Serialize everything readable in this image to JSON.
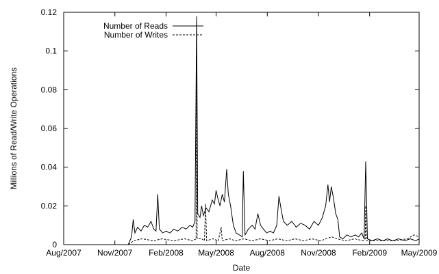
{
  "chart_data": {
    "type": "line",
    "title": "",
    "xlabel": "Date",
    "ylabel": "Millions of Read/Write Operations",
    "x_ticks": [
      "Aug/2007",
      "Nov/2007",
      "Feb/2008",
      "May/2008",
      "Aug/2008",
      "Nov/2008",
      "Feb/2009",
      "May/2009"
    ],
    "y_ticks": [
      "0",
      "0.02",
      "0.04",
      "0.06",
      "0.08",
      "0.1",
      "0.12"
    ],
    "xlim": [
      "2007-08-01",
      "2009-05-01"
    ],
    "ylim": [
      0,
      0.12
    ],
    "legend_position": "top-left",
    "series": [
      {
        "name": "Number of Reads",
        "style": "solid",
        "color": "#000000",
        "points": [
          [
            "2007-11-25",
            0.0
          ],
          [
            "2007-12-01",
            0.004
          ],
          [
            "2007-12-04",
            0.013
          ],
          [
            "2007-12-07",
            0.006
          ],
          [
            "2007-12-12",
            0.009
          ],
          [
            "2007-12-18",
            0.007
          ],
          [
            "2007-12-24",
            0.01
          ],
          [
            "2007-12-30",
            0.009
          ],
          [
            "2008-01-05",
            0.012
          ],
          [
            "2008-01-10",
            0.008
          ],
          [
            "2008-01-14",
            0.007
          ],
          [
            "2008-01-17",
            0.026
          ],
          [
            "2008-01-20",
            0.008
          ],
          [
            "2008-01-26",
            0.006
          ],
          [
            "2008-02-01",
            0.007
          ],
          [
            "2008-02-08",
            0.006
          ],
          [
            "2008-02-15",
            0.008
          ],
          [
            "2008-02-22",
            0.007
          ],
          [
            "2008-03-01",
            0.009
          ],
          [
            "2008-03-08",
            0.008
          ],
          [
            "2008-03-15",
            0.01
          ],
          [
            "2008-03-20",
            0.009
          ],
          [
            "2008-03-24",
            0.012
          ],
          [
            "2008-03-27",
            0.118
          ],
          [
            "2008-03-29",
            0.016
          ],
          [
            "2008-04-02",
            0.014
          ],
          [
            "2008-04-05",
            0.02
          ],
          [
            "2008-04-08",
            0.015
          ],
          [
            "2008-04-13",
            0.019
          ],
          [
            "2008-04-18",
            0.017
          ],
          [
            "2008-04-24",
            0.023
          ],
          [
            "2008-04-28",
            0.021
          ],
          [
            "2008-05-01",
            0.028
          ],
          [
            "2008-05-04",
            0.024
          ],
          [
            "2008-05-08",
            0.02
          ],
          [
            "2008-05-12",
            0.026
          ],
          [
            "2008-05-16",
            0.022
          ],
          [
            "2008-05-20",
            0.039
          ],
          [
            "2008-05-23",
            0.026
          ],
          [
            "2008-05-27",
            0.02
          ],
          [
            "2008-06-01",
            0.01
          ],
          [
            "2008-06-06",
            0.006
          ],
          [
            "2008-06-12",
            0.005
          ],
          [
            "2008-06-17",
            0.004
          ],
          [
            "2008-06-19",
            0.038
          ],
          [
            "2008-06-22",
            0.005
          ],
          [
            "2008-06-28",
            0.008
          ],
          [
            "2008-07-05",
            0.01
          ],
          [
            "2008-07-10",
            0.008
          ],
          [
            "2008-07-15",
            0.016
          ],
          [
            "2008-07-20",
            0.01
          ],
          [
            "2008-07-25",
            0.008
          ],
          [
            "2008-07-31",
            0.006
          ],
          [
            "2008-08-06",
            0.007
          ],
          [
            "2008-08-12",
            0.006
          ],
          [
            "2008-08-18",
            0.01
          ],
          [
            "2008-08-22",
            0.025
          ],
          [
            "2008-08-26",
            0.018
          ],
          [
            "2008-08-30",
            0.012
          ],
          [
            "2008-09-06",
            0.01
          ],
          [
            "2008-09-14",
            0.012
          ],
          [
            "2008-09-22",
            0.009
          ],
          [
            "2008-09-30",
            0.011
          ],
          [
            "2008-10-08",
            0.01
          ],
          [
            "2008-10-16",
            0.008
          ],
          [
            "2008-10-24",
            0.012
          ],
          [
            "2008-11-01",
            0.01
          ],
          [
            "2008-11-08",
            0.014
          ],
          [
            "2008-11-14",
            0.02
          ],
          [
            "2008-11-18",
            0.031
          ],
          [
            "2008-11-21",
            0.022
          ],
          [
            "2008-11-24",
            0.03
          ],
          [
            "2008-11-28",
            0.024
          ],
          [
            "2008-12-02",
            0.016
          ],
          [
            "2008-12-06",
            0.013
          ],
          [
            "2008-12-09",
            0.004
          ],
          [
            "2008-12-15",
            0.003
          ],
          [
            "2008-12-22",
            0.005
          ],
          [
            "2008-12-30",
            0.004
          ],
          [
            "2009-01-06",
            0.005
          ],
          [
            "2009-01-12",
            0.004
          ],
          [
            "2009-01-18",
            0.006
          ],
          [
            "2009-01-22",
            0.003
          ],
          [
            "2009-01-25",
            0.043
          ],
          [
            "2009-01-28",
            0.003
          ],
          [
            "2009-02-05",
            0.002
          ],
          [
            "2009-02-15",
            0.003
          ],
          [
            "2009-02-25",
            0.002
          ],
          [
            "2009-03-05",
            0.003
          ],
          [
            "2009-03-15",
            0.002
          ],
          [
            "2009-03-25",
            0.003
          ],
          [
            "2009-04-05",
            0.002
          ],
          [
            "2009-04-15",
            0.003
          ],
          [
            "2009-04-25",
            0.002
          ],
          [
            "2009-05-01",
            0.003
          ]
        ]
      },
      {
        "name": "Number of Writes",
        "style": "dashed",
        "color": "#000000",
        "points": [
          [
            "2007-11-25",
            0.0
          ],
          [
            "2007-12-05",
            0.002
          ],
          [
            "2007-12-20",
            0.003
          ],
          [
            "2008-01-10",
            0.002
          ],
          [
            "2008-01-25",
            0.003
          ],
          [
            "2008-02-15",
            0.002
          ],
          [
            "2008-03-05",
            0.003
          ],
          [
            "2008-03-20",
            0.002
          ],
          [
            "2008-03-26",
            0.003
          ],
          [
            "2008-03-27",
            0.115
          ],
          [
            "2008-03-28",
            0.003
          ],
          [
            "2008-04-05",
            0.003
          ],
          [
            "2008-04-10",
            0.002
          ],
          [
            "2008-04-12",
            0.021
          ],
          [
            "2008-04-14",
            0.002
          ],
          [
            "2008-04-25",
            0.003
          ],
          [
            "2008-05-05",
            0.002
          ],
          [
            "2008-05-10",
            0.009
          ],
          [
            "2008-05-12",
            0.002
          ],
          [
            "2008-05-25",
            0.003
          ],
          [
            "2008-06-05",
            0.002
          ],
          [
            "2008-06-20",
            0.003
          ],
          [
            "2008-07-05",
            0.002
          ],
          [
            "2008-07-20",
            0.003
          ],
          [
            "2008-08-05",
            0.002
          ],
          [
            "2008-08-20",
            0.003
          ],
          [
            "2008-09-05",
            0.002
          ],
          [
            "2008-09-20",
            0.003
          ],
          [
            "2008-10-05",
            0.002
          ],
          [
            "2008-10-20",
            0.003
          ],
          [
            "2008-11-05",
            0.002
          ],
          [
            "2008-11-25",
            0.004
          ],
          [
            "2008-12-05",
            0.003
          ],
          [
            "2008-12-20",
            0.002
          ],
          [
            "2009-01-05",
            0.003
          ],
          [
            "2009-01-20",
            0.002
          ],
          [
            "2009-01-24",
            0.003
          ],
          [
            "2009-01-25",
            0.02
          ],
          [
            "2009-01-26",
            0.002
          ],
          [
            "2009-02-10",
            0.002
          ],
          [
            "2009-03-01",
            0.002
          ],
          [
            "2009-03-20",
            0.002
          ],
          [
            "2009-04-10",
            0.003
          ],
          [
            "2009-04-22",
            0.005
          ],
          [
            "2009-05-01",
            0.004
          ]
        ]
      }
    ]
  }
}
